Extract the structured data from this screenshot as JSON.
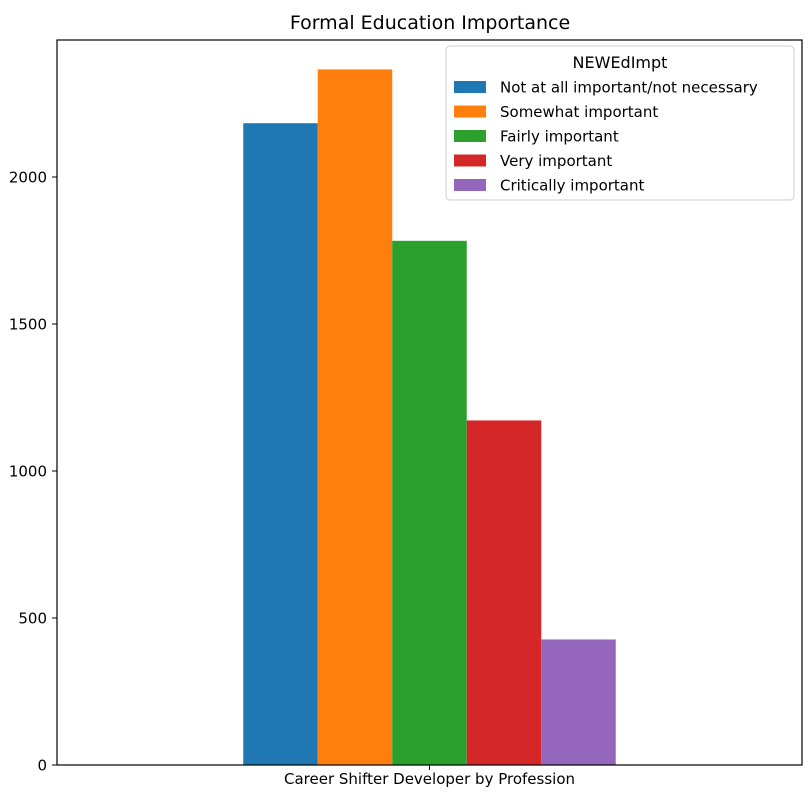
{
  "chart_data": {
    "type": "bar",
    "title": "Formal Education Importance",
    "xlabel": "",
    "ylabel": "",
    "categories": [
      "Career Shifter Developer by Profession"
    ],
    "ylim": [
      0,
      2466
    ],
    "yticks": [
      0,
      500,
      1000,
      1500,
      2000
    ],
    "grid": false,
    "legend": {
      "title": "NEWEdImpt",
      "placement": "top-right"
    },
    "series": [
      {
        "name": "Not at all important/not necessary",
        "values": [
          2183
        ],
        "color": "#1f77b4"
      },
      {
        "name": "Somewhat important",
        "values": [
          2366
        ],
        "color": "#ff7f0e"
      },
      {
        "name": "Fairly important",
        "values": [
          1783
        ],
        "color": "#2ca02c"
      },
      {
        "name": "Very important",
        "values": [
          1172
        ],
        "color": "#d62728"
      },
      {
        "name": "Critically important",
        "values": [
          427
        ],
        "color": "#9467bd"
      }
    ]
  }
}
